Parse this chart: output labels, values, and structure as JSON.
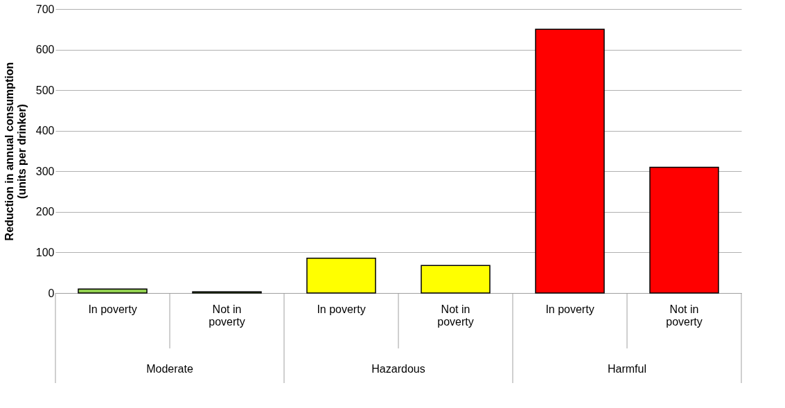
{
  "chart_data": {
    "type": "bar",
    "ylabel": "Reduction in annual consumption  (units per drinker)",
    "categories": [
      "In poverty",
      "Not in poverty",
      "In poverty",
      "Not in poverty",
      "In poverty",
      "Not in poverty"
    ],
    "values": [
      10,
      3,
      86,
      68,
      650,
      310
    ],
    "colors": [
      "#92d050",
      "#92d050",
      "#ffff00",
      "#ffff00",
      "#ff0000",
      "#ff0000"
    ],
    "annotations": [
      "Moderate",
      "Hazardous",
      "Harmful"
    ],
    "ylim": [
      0,
      700
    ],
    "yticks": [
      0,
      100,
      200,
      300,
      400,
      500,
      600,
      700
    ],
    "grid": "y"
  }
}
